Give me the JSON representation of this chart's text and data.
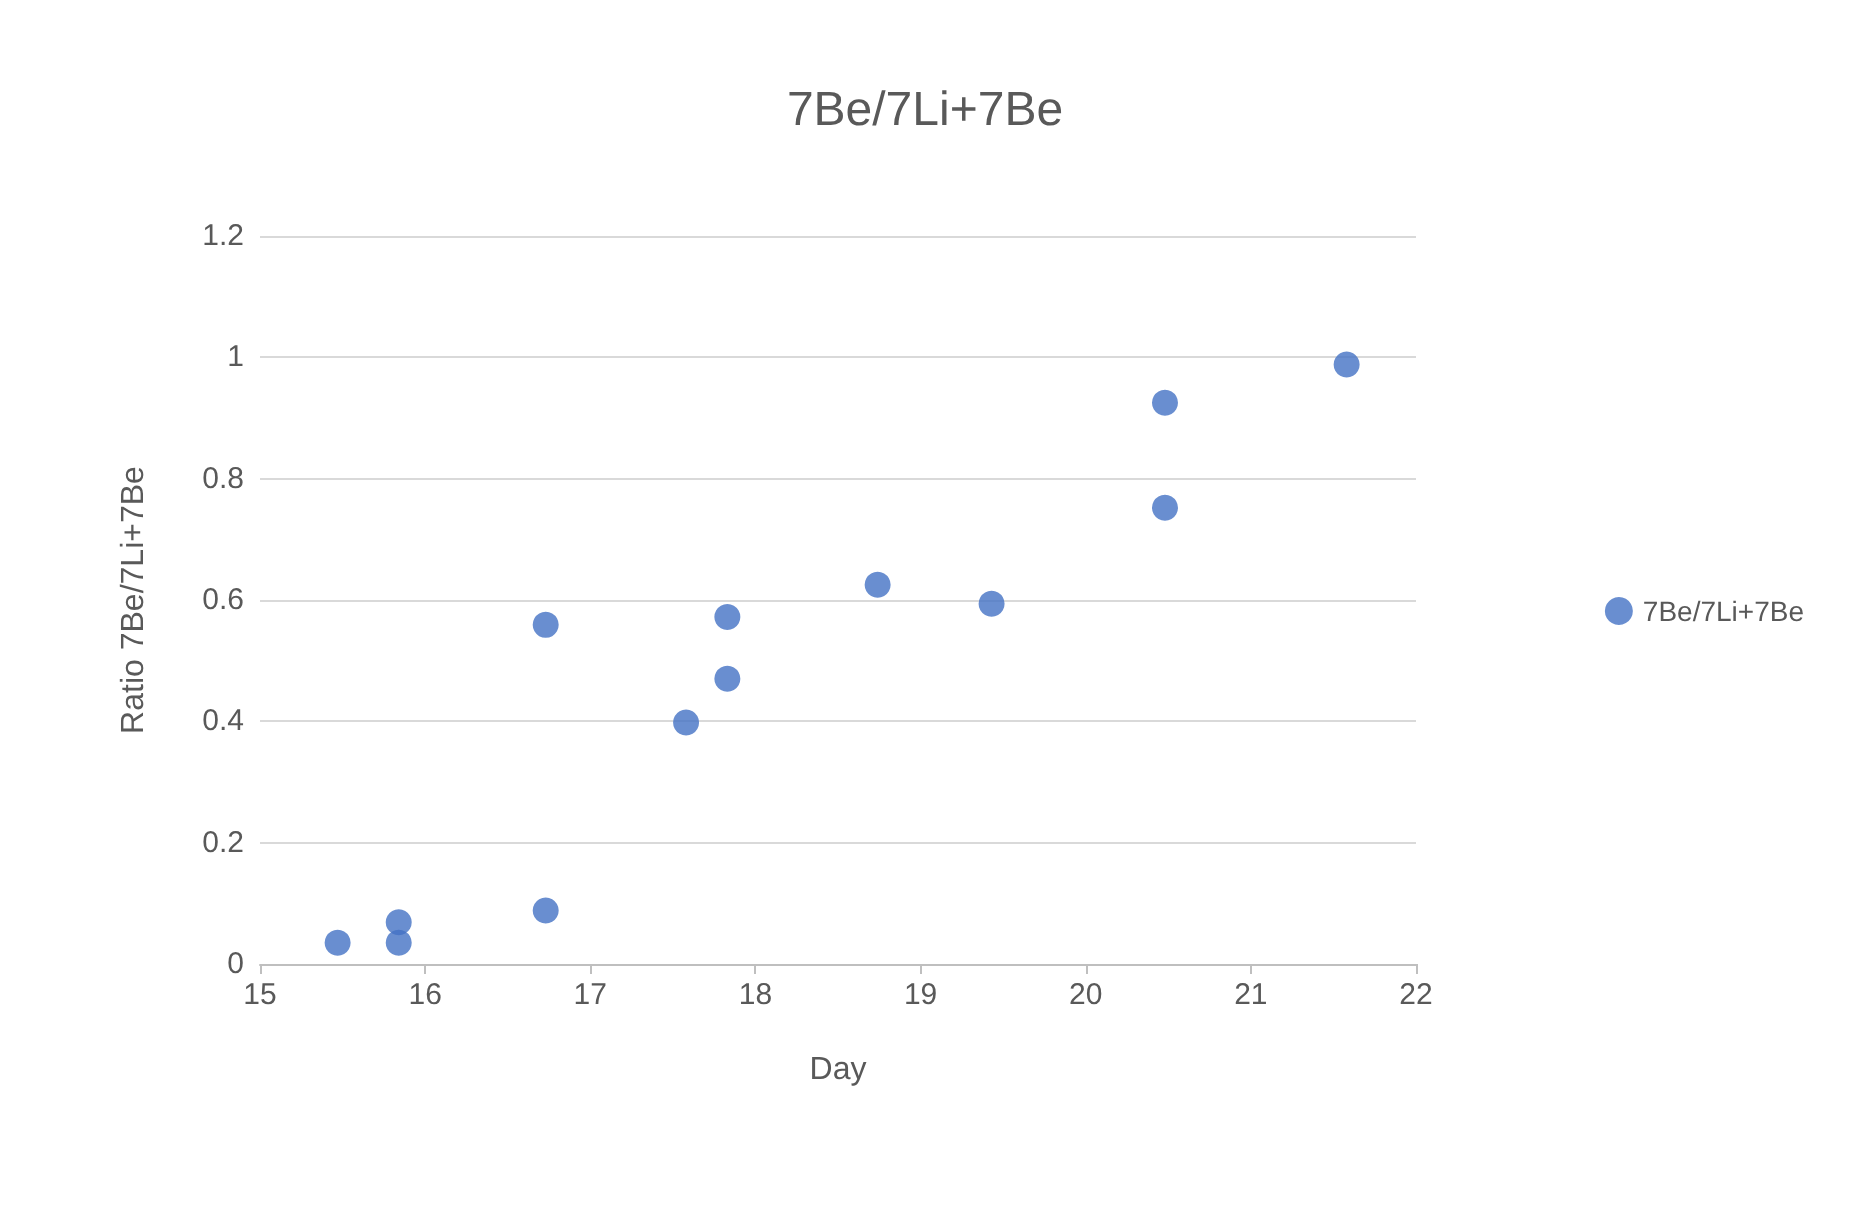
{
  "chart_data": {
    "type": "scatter",
    "title": "7Be/7Li+7Be",
    "xlabel": "Day",
    "ylabel": "Ratio 7Be/7Li+7Be",
    "xlim": [
      15,
      22
    ],
    "xticks": [
      15,
      16,
      17,
      18,
      19,
      20,
      21,
      22
    ],
    "ylim": [
      0,
      1.2
    ],
    "yticks": [
      0,
      0.2,
      0.4,
      0.6,
      0.8,
      1,
      1.2
    ],
    "grid": "y",
    "legend": "right",
    "marker": "circle",
    "series": [
      {
        "name": "7Be/7Li+7Be",
        "color": "#4472c4",
        "x": [
          15.47,
          15.84,
          15.84,
          16.73,
          16.73,
          17.58,
          17.83,
          17.83,
          18.74,
          19.43,
          20.48,
          20.48,
          21.58
        ],
        "values": [
          0.035,
          0.069,
          0.035,
          0.088,
          0.559,
          0.398,
          0.572,
          0.47,
          0.625,
          0.594,
          0.925,
          0.752,
          0.988
        ]
      }
    ]
  }
}
